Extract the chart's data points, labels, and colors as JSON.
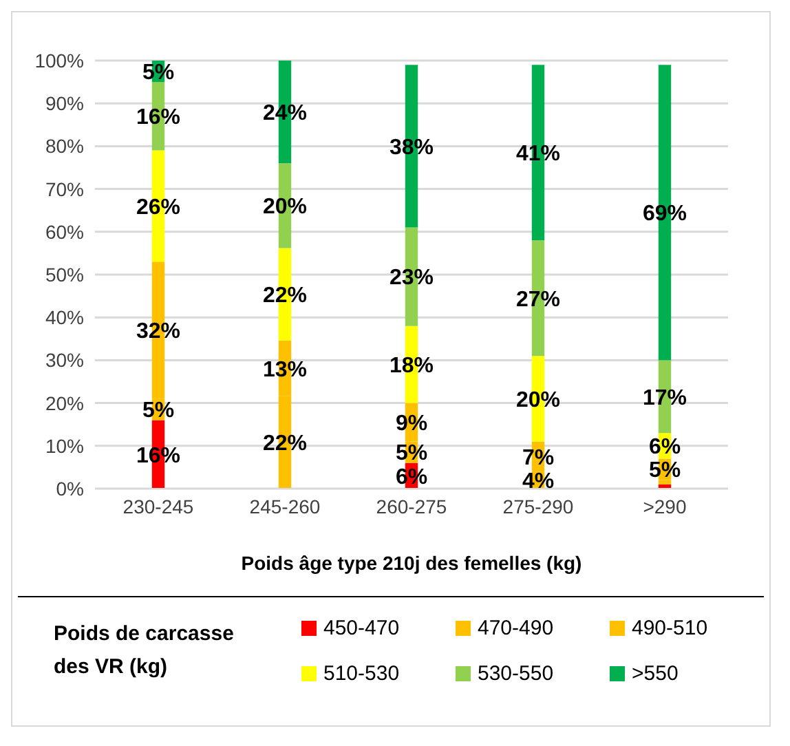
{
  "chart_data": {
    "type": "bar",
    "stacked": true,
    "xlabel": "Poids âge type 210j des femelles (kg)",
    "legend_title": "Poids de carcasse des VR (kg)",
    "legend": "bottom",
    "grid": "y",
    "categories": [
      "230-245",
      "245-260",
      "260-275",
      "275-290",
      ">290"
    ],
    "ylim": [
      0,
      100
    ],
    "yticks": [
      {
        "value": 0,
        "label": "0%"
      },
      {
        "value": 10,
        "label": "10%"
      },
      {
        "value": 20,
        "label": "20%"
      },
      {
        "value": 30,
        "label": "30%"
      },
      {
        "value": 40,
        "label": "40%"
      },
      {
        "value": 50,
        "label": "50%"
      },
      {
        "value": 60,
        "label": "60%"
      },
      {
        "value": 70,
        "label": "70%"
      },
      {
        "value": 80,
        "label": "80%"
      },
      {
        "value": 90,
        "label": "90%"
      },
      {
        "value": 100,
        "label": "100%"
      }
    ],
    "series": [
      {
        "name": "450-470",
        "color": "#ff0000",
        "values": [
          16,
          0,
          6,
          0,
          1
        ],
        "value_labels": [
          "16%",
          null,
          "6%",
          null,
          null
        ]
      },
      {
        "name": "470-490",
        "color": "#ffc000",
        "values": [
          5,
          21.6,
          5,
          4,
          1
        ],
        "value_labels": [
          "5%",
          "22%",
          "5%",
          "4%",
          null
        ]
      },
      {
        "name": "490-510",
        "color": "#ffc000",
        "values": [
          32,
          13,
          9,
          7,
          5
        ],
        "value_labels": [
          "32%",
          "13%",
          "9%",
          "7%",
          "5%"
        ]
      },
      {
        "name": "510-530",
        "color": "#ffff00",
        "values": [
          26,
          21.6,
          18,
          20,
          6
        ],
        "value_labels": [
          "26%",
          "22%",
          "18%",
          "20%",
          "6%"
        ]
      },
      {
        "name": "530-550",
        "color": "#92d050",
        "values": [
          16,
          19.8,
          23,
          27,
          17
        ],
        "value_labels": [
          "16%",
          "20%",
          "23%",
          "27%",
          "17%"
        ]
      },
      {
        "name": ">550",
        "color": "#00b050",
        "values": [
          5,
          24,
          38,
          41,
          69
        ],
        "value_labels": [
          "5%",
          "24%",
          "38%",
          "41%",
          "69%"
        ]
      }
    ]
  }
}
